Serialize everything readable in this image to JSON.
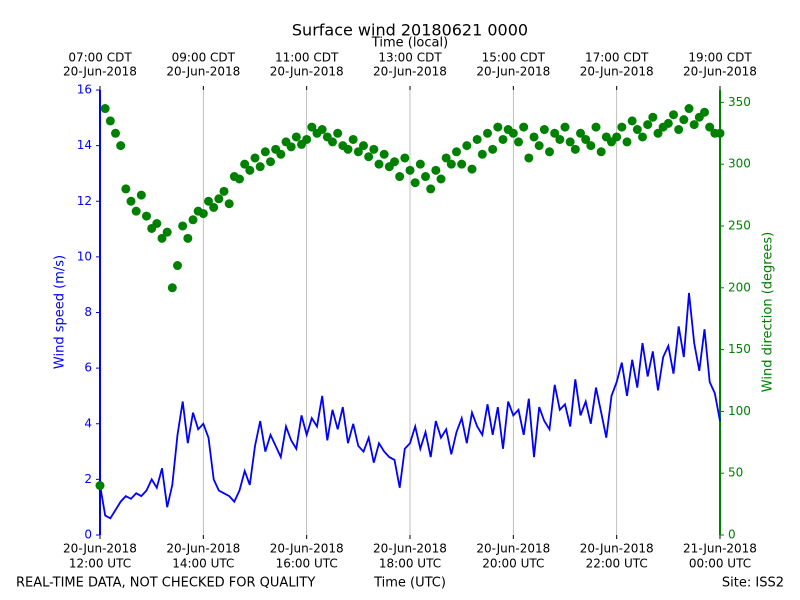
{
  "chart_data": {
    "type": "line",
    "title": "Surface wind 20180621 0000",
    "xlabel": "Time (UTC)",
    "x2label": "Time (local)",
    "annotations": [
      "REAL-TIME DATA, NOT CHECKED FOR QUALITY",
      "Site: ISS2"
    ],
    "xlim": [
      "2018-06-20T12:00",
      "2018-06-21T00:00"
    ],
    "xticks": [
      {
        "value": "2018-06-20T12:00",
        "label": [
          "20-Jun-2018",
          "12:00 UTC"
        ]
      },
      {
        "value": "2018-06-20T14:00",
        "label": [
          "20-Jun-2018",
          "14:00 UTC"
        ]
      },
      {
        "value": "2018-06-20T16:00",
        "label": [
          "20-Jun-2018",
          "16:00 UTC"
        ]
      },
      {
        "value": "2018-06-20T18:00",
        "label": [
          "20-Jun-2018",
          "18:00 UTC"
        ]
      },
      {
        "value": "2018-06-20T20:00",
        "label": [
          "20-Jun-2018",
          "20:00 UTC"
        ]
      },
      {
        "value": "2018-06-20T22:00",
        "label": [
          "20-Jun-2018",
          "22:00 UTC"
        ]
      },
      {
        "value": "2018-06-21T00:00",
        "label": [
          "21-Jun-2018",
          "00:00 UTC"
        ]
      }
    ],
    "x2ticks": [
      {
        "value": "2018-06-20T12:00",
        "label": [
          "07:00 CDT",
          "20-Jun-2018"
        ]
      },
      {
        "value": "2018-06-20T14:00",
        "label": [
          "09:00 CDT",
          "20-Jun-2018"
        ]
      },
      {
        "value": "2018-06-20T16:00",
        "label": [
          "11:00 CDT",
          "20-Jun-2018"
        ]
      },
      {
        "value": "2018-06-20T18:00",
        "label": [
          "13:00 CDT",
          "20-Jun-2018"
        ]
      },
      {
        "value": "2018-06-20T20:00",
        "label": [
          "15:00 CDT",
          "20-Jun-2018"
        ]
      },
      {
        "value": "2018-06-20T22:00",
        "label": [
          "17:00 CDT",
          "20-Jun-2018"
        ]
      },
      {
        "value": "2018-06-21T00:00",
        "label": [
          "19:00 CDT",
          "20-Jun-2018"
        ]
      }
    ],
    "ylim": [
      0,
      16
    ],
    "yticks": [
      0,
      2,
      4,
      6,
      8,
      10,
      12,
      14,
      16
    ],
    "y2lim": [
      0,
      360
    ],
    "y2ticks": [
      0,
      50,
      100,
      150,
      200,
      250,
      300,
      350
    ],
    "grid": "x",
    "x": [
      "2018-06-20T12:00",
      "2018-06-20T12:06",
      "2018-06-20T12:12",
      "2018-06-20T12:18",
      "2018-06-20T12:24",
      "2018-06-20T12:30",
      "2018-06-20T12:36",
      "2018-06-20T12:42",
      "2018-06-20T12:48",
      "2018-06-20T12:54",
      "2018-06-20T13:00",
      "2018-06-20T13:06",
      "2018-06-20T13:12",
      "2018-06-20T13:18",
      "2018-06-20T13:24",
      "2018-06-20T13:30",
      "2018-06-20T13:36",
      "2018-06-20T13:42",
      "2018-06-20T13:48",
      "2018-06-20T13:54",
      "2018-06-20T14:00",
      "2018-06-20T14:06",
      "2018-06-20T14:12",
      "2018-06-20T14:18",
      "2018-06-20T14:24",
      "2018-06-20T14:30",
      "2018-06-20T14:36",
      "2018-06-20T14:42",
      "2018-06-20T14:48",
      "2018-06-20T14:54",
      "2018-06-20T15:00",
      "2018-06-20T15:06",
      "2018-06-20T15:12",
      "2018-06-20T15:18",
      "2018-06-20T15:24",
      "2018-06-20T15:30",
      "2018-06-20T15:36",
      "2018-06-20T15:42",
      "2018-06-20T15:48",
      "2018-06-20T15:54",
      "2018-06-20T16:00",
      "2018-06-20T16:06",
      "2018-06-20T16:12",
      "2018-06-20T16:18",
      "2018-06-20T16:24",
      "2018-06-20T16:30",
      "2018-06-20T16:36",
      "2018-06-20T16:42",
      "2018-06-20T16:48",
      "2018-06-20T16:54",
      "2018-06-20T17:00",
      "2018-06-20T17:06",
      "2018-06-20T17:12",
      "2018-06-20T17:18",
      "2018-06-20T17:24",
      "2018-06-20T17:30",
      "2018-06-20T17:36",
      "2018-06-20T17:42",
      "2018-06-20T17:48",
      "2018-06-20T17:54",
      "2018-06-20T18:00",
      "2018-06-20T18:06",
      "2018-06-20T18:12",
      "2018-06-20T18:18",
      "2018-06-20T18:24",
      "2018-06-20T18:30",
      "2018-06-20T18:36",
      "2018-06-20T18:42",
      "2018-06-20T18:48",
      "2018-06-20T18:54",
      "2018-06-20T19:00",
      "2018-06-20T19:06",
      "2018-06-20T19:12",
      "2018-06-20T19:18",
      "2018-06-20T19:24",
      "2018-06-20T19:30",
      "2018-06-20T19:36",
      "2018-06-20T19:42",
      "2018-06-20T19:48",
      "2018-06-20T19:54",
      "2018-06-20T20:00",
      "2018-06-20T20:06",
      "2018-06-20T20:12",
      "2018-06-20T20:18",
      "2018-06-20T20:24",
      "2018-06-20T20:30",
      "2018-06-20T20:36",
      "2018-06-20T20:42",
      "2018-06-20T20:48",
      "2018-06-20T20:54",
      "2018-06-20T21:00",
      "2018-06-20T21:06",
      "2018-06-20T21:12",
      "2018-06-20T21:18",
      "2018-06-20T21:24",
      "2018-06-20T21:30",
      "2018-06-20T21:36",
      "2018-06-20T21:42",
      "2018-06-20T21:48",
      "2018-06-20T21:54",
      "2018-06-20T22:00",
      "2018-06-20T22:06",
      "2018-06-20T22:12",
      "2018-06-20T22:18",
      "2018-06-20T22:24",
      "2018-06-20T22:30",
      "2018-06-20T22:36",
      "2018-06-20T22:42",
      "2018-06-20T22:48",
      "2018-06-20T22:54",
      "2018-06-20T23:00",
      "2018-06-20T23:06",
      "2018-06-20T23:12",
      "2018-06-20T23:18",
      "2018-06-20T23:24",
      "2018-06-20T23:30",
      "2018-06-20T23:36",
      "2018-06-20T23:42",
      "2018-06-20T23:48",
      "2018-06-20T23:54",
      "2018-06-21T00:00"
    ],
    "series": [
      {
        "name": "Wind speed (m/s)",
        "type": "line",
        "color": "#0000ff",
        "values": [
          1.8,
          0.7,
          0.6,
          0.9,
          1.2,
          1.4,
          1.3,
          1.5,
          1.4,
          1.6,
          2.0,
          1.7,
          2.4,
          1.0,
          1.8,
          3.6,
          4.8,
          3.3,
          4.4,
          3.8,
          4.0,
          3.5,
          2.0,
          1.6,
          1.5,
          1.4,
          1.2,
          1.6,
          2.3,
          1.8,
          3.2,
          4.1,
          3.0,
          3.6,
          3.2,
          2.8,
          3.9,
          3.4,
          3.1,
          4.3,
          3.6,
          4.2,
          3.9,
          5.0,
          3.4,
          4.5,
          3.8,
          4.6,
          3.3,
          4.0,
          3.2,
          3.0,
          3.5,
          2.6,
          3.3,
          3.0,
          2.8,
          2.7,
          1.7,
          3.1,
          3.3,
          3.9,
          3.1,
          3.7,
          2.8,
          4.1,
          3.5,
          3.8,
          2.9,
          3.7,
          4.2,
          3.3,
          4.4,
          3.9,
          3.6,
          4.7,
          3.6,
          4.6,
          3.1,
          4.8,
          4.3,
          4.5,
          3.6,
          4.9,
          2.8,
          4.6,
          4.1,
          3.8,
          5.4,
          4.5,
          4.7,
          3.9,
          5.6,
          4.3,
          4.8,
          4.0,
          5.3,
          4.4,
          3.5,
          5.0,
          5.5,
          6.2,
          5.0,
          6.3,
          5.3,
          6.9,
          5.7,
          6.6,
          5.2,
          6.4,
          6.8,
          5.8,
          7.5,
          6.4,
          8.7,
          6.9,
          5.9,
          7.4,
          5.5,
          5.1,
          4.1
        ]
      },
      {
        "name": "Wind direction (degrees)",
        "type": "scatter",
        "axis": "y2",
        "color": "#008000",
        "values": [
          40,
          345,
          335,
          325,
          315,
          280,
          270,
          262,
          275,
          258,
          248,
          252,
          240,
          245,
          200,
          218,
          250,
          240,
          255,
          262,
          260,
          270,
          265,
          272,
          278,
          268,
          290,
          288,
          300,
          295,
          305,
          298,
          310,
          302,
          312,
          308,
          318,
          314,
          322,
          316,
          320,
          330,
          325,
          328,
          322,
          318,
          325,
          315,
          312,
          320,
          310,
          315,
          306,
          312,
          300,
          308,
          298,
          302,
          290,
          305,
          295,
          285,
          300,
          290,
          280,
          295,
          288,
          305,
          300,
          310,
          300,
          315,
          296,
          320,
          308,
          325,
          312,
          330,
          320,
          328,
          325,
          318,
          330,
          305,
          322,
          315,
          328,
          310,
          325,
          320,
          330,
          318,
          312,
          325,
          320,
          315,
          330,
          310,
          322,
          318,
          322,
          330,
          318,
          335,
          328,
          322,
          332,
          338,
          325,
          330,
          333,
          340,
          328,
          336,
          345,
          332,
          338,
          342,
          330,
          325,
          325
        ]
      }
    ]
  }
}
